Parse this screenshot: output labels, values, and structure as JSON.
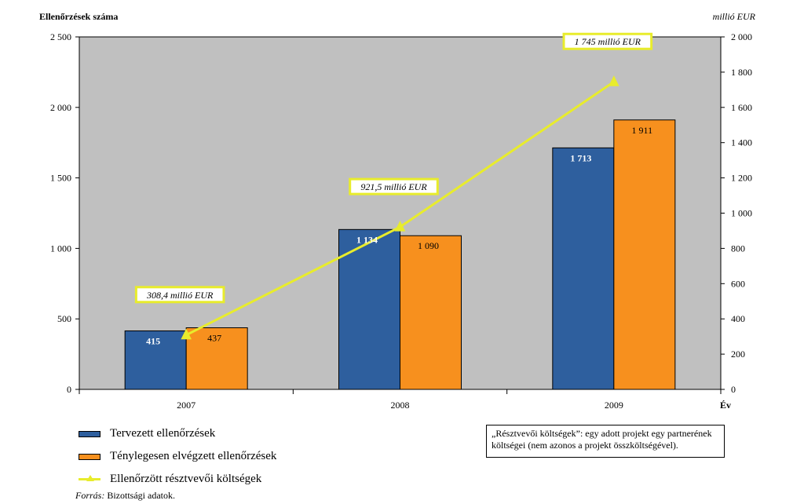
{
  "chart_data": {
    "type": "bar",
    "left_axis_title": "Ellenőrzések száma",
    "right_axis_title": "millió EUR",
    "x_axis_title": "Év",
    "categories": [
      "2007",
      "2008",
      "2009"
    ],
    "y_left_range": [
      0,
      2500
    ],
    "y_left_ticks": [
      "0",
      "500",
      "1 000",
      "1 500",
      "2 000",
      "2 500"
    ],
    "y_right_range": [
      0,
      2000
    ],
    "y_right_ticks": [
      "0",
      "200",
      "400",
      "600",
      "800",
      "1 000",
      "1 200",
      "1 400",
      "1 600",
      "1 800",
      "2 000"
    ],
    "series": [
      {
        "name": "Tervezett ellenőrzések",
        "type": "bar",
        "axis": "left",
        "color": "#2e5f9e",
        "values": [
          415,
          1134,
          1713
        ],
        "labels": [
          "415",
          "1 134",
          "1 713"
        ]
      },
      {
        "name": "Ténylegesen elvégzett ellenőrzések",
        "type": "bar",
        "axis": "left",
        "color": "#f7901e",
        "values": [
          437,
          1090,
          1911
        ],
        "labels": [
          "437",
          "1 090",
          "1 911"
        ]
      },
      {
        "name": "Ellenőrzött résztvevői költségek",
        "type": "line",
        "axis": "right",
        "color": "#e8ec2c",
        "values": [
          308.4,
          921.5,
          1745
        ],
        "labels": [
          "308,4 millió EUR",
          "921,5 millió EUR",
          "1 745 millió EUR"
        ]
      }
    ],
    "plot_background": "#c0c0c0",
    "grid": false,
    "legend_position": "bottom-left"
  },
  "note": "„Résztvevői költségek”: egy adott projekt egy partnerének költségei (nem azonos a projekt összköltségével).",
  "source_label": "Forrás:",
  "source_text": "Bizottsági adatok."
}
